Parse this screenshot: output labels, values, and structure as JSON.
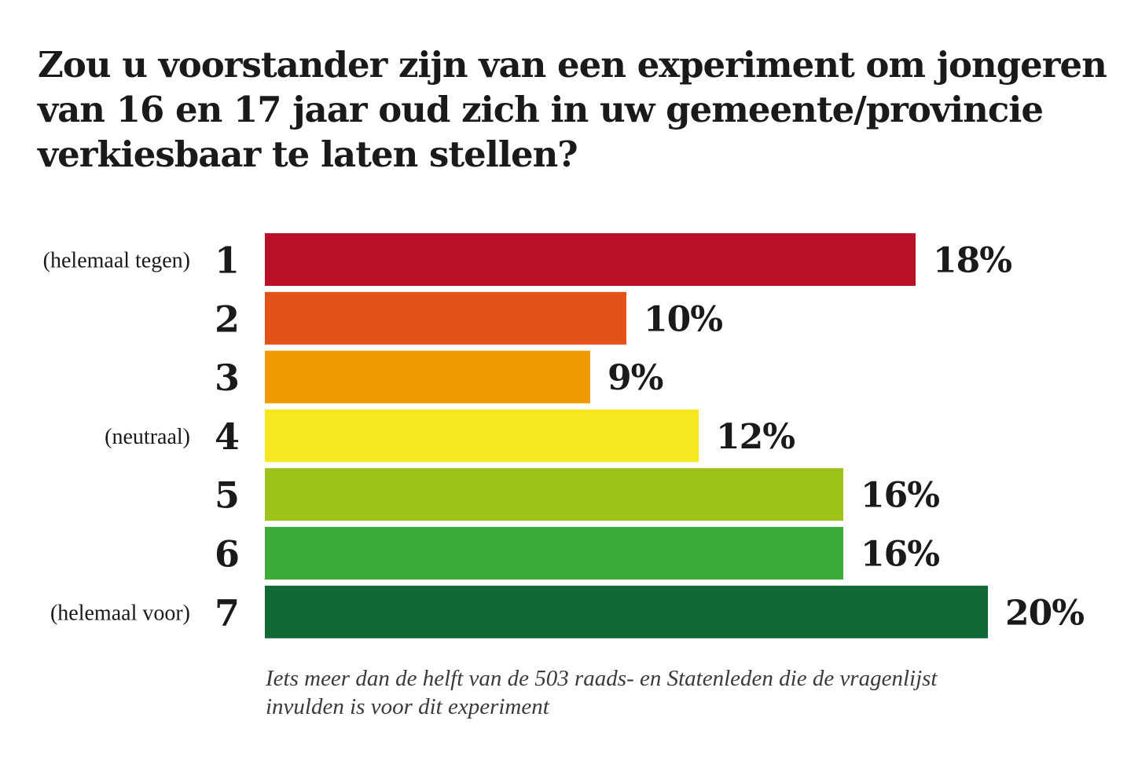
{
  "title": "Zou u voorstander zijn van een experiment om jongeren van 16 en 17 jaar oud zich in uw gemeente/provincie verkiesbaar te laten stellen?",
  "chart_data": {
    "type": "bar",
    "orientation": "horizontal",
    "categories": [
      "1",
      "2",
      "3",
      "4",
      "5",
      "6",
      "7"
    ],
    "category_descriptions": [
      "(helemaal tegen)",
      "",
      "",
      "(neutraal)",
      "",
      "",
      "(helemaal voor)"
    ],
    "values": [
      18,
      10,
      9,
      12,
      16,
      16,
      20
    ],
    "value_labels": [
      "18%",
      "10%",
      "9%",
      "12%",
      "16%",
      "16%",
      "20%"
    ],
    "colors": [
      "#b91226",
      "#e35219",
      "#f09a00",
      "#f6e71e",
      "#9bc31a",
      "#3cab37",
      "#116935"
    ],
    "unit": "%",
    "title": "",
    "xlabel": "",
    "ylabel": "",
    "xlim": [
      0,
      20
    ],
    "grid": false,
    "legend": "none"
  },
  "note": "Iets meer dan de helft van de 503 raads- en Statenleden die de vragenlijst invulden is voor dit experiment"
}
